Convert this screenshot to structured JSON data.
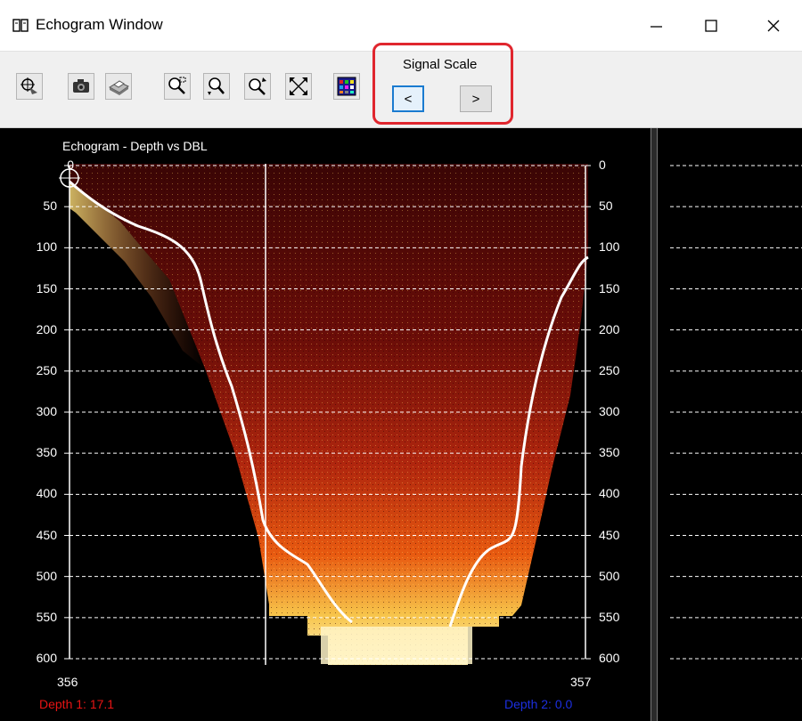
{
  "window": {
    "title": "Echogram Window",
    "controls": [
      "minimize-icon",
      "maximize-icon",
      "close-icon"
    ]
  },
  "toolbar": {
    "tools": [
      "target-icon",
      "camera-icon",
      "print-icon",
      "zoom-region-icon",
      "zoom-in-icon",
      "zoom-out-icon",
      "fit-to-window-icon",
      "palette-icon"
    ],
    "signal_scale": {
      "label": "Signal Scale",
      "decrease_label": "<",
      "increase_label": ">"
    }
  },
  "echogram": {
    "title": "Echogram - Depth vs DBL",
    "x_start_label": "356",
    "x_end_label": "357",
    "depth1_label": "Depth 1: 17.1",
    "depth2_label": "Depth 2: 0.0",
    "colors": {
      "depth1": "#e81414",
      "depth2": "#1c2fe0",
      "highlight": "#e0262e"
    }
  },
  "chart_data": {
    "type": "heatmap",
    "title": "Echogram - Depth vs DBL",
    "y_ticks": [
      0,
      50,
      100,
      150,
      200,
      250,
      300,
      350,
      400,
      450,
      500,
      550,
      600
    ],
    "x_ticks": [
      356,
      357
    ],
    "ylim": [
      0,
      600
    ],
    "y_inverted": true,
    "grid": "horizontal dashed"
  }
}
